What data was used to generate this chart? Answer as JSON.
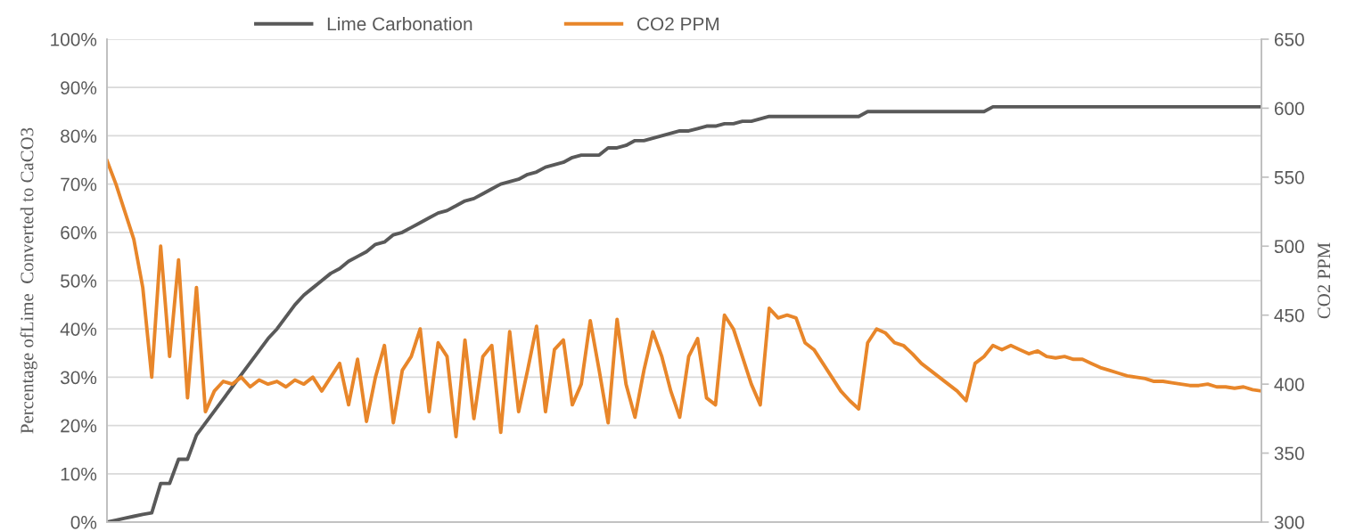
{
  "chart_data": {
    "type": "line",
    "ylabel": "Percentage ofLime  Converted to CaCO3",
    "y2label": "CO2 PPM",
    "categories": [
      null,
      null,
      null,
      null,
      null,
      null,
      null,
      null,
      null,
      null,
      null,
      null,
      null,
      null,
      null,
      null,
      null,
      null,
      null,
      null,
      null,
      null,
      null,
      null,
      null,
      null,
      null,
      null,
      null,
      null,
      null,
      null,
      null,
      null,
      null,
      null,
      null,
      null,
      null,
      null,
      null,
      null,
      null,
      null,
      null,
      null,
      null,
      null,
      null,
      null,
      null,
      null,
      null,
      null,
      null,
      null,
      null,
      null,
      null,
      null,
      null,
      null,
      null,
      null,
      null,
      null,
      null,
      null,
      null,
      null,
      null,
      null,
      null,
      null,
      null,
      null,
      null,
      null,
      null,
      null,
      null,
      null,
      null,
      null,
      null,
      null,
      null,
      null,
      null,
      null,
      null,
      null,
      null,
      null,
      null,
      null,
      null,
      null,
      null,
      null,
      null,
      null,
      null,
      null,
      null,
      null,
      null,
      null,
      null,
      null,
      null,
      null,
      null,
      null,
      null,
      null,
      null,
      null,
      null,
      null,
      null,
      null,
      null,
      null,
      null,
      null,
      null,
      null,
      null,
      null
    ],
    "series": [
      {
        "name": "Lime Carbonation",
        "color": "#595959",
        "values": [
          0,
          0.4,
          0.8,
          1.2,
          1.6,
          1.9,
          8,
          8,
          13,
          13,
          18,
          20.5,
          23,
          25.5,
          28,
          30.5,
          33,
          35.5,
          38,
          40,
          42.5,
          45,
          47,
          48.5,
          50,
          51.5,
          52.5,
          54,
          55,
          56,
          57.5,
          58,
          59.5,
          60,
          61,
          62,
          63,
          64,
          64.5,
          65.5,
          66.5,
          67,
          68,
          69,
          70,
          70.5,
          71,
          72,
          72.5,
          73.5,
          74,
          74.5,
          75.5,
          76,
          76,
          76,
          77.5,
          77.5,
          78,
          79,
          79,
          79.5,
          80,
          80.5,
          81,
          81,
          81.5,
          82,
          82,
          82.5,
          82.5,
          83,
          83,
          83.5,
          84,
          84,
          84,
          84,
          84,
          84,
          84,
          84,
          84,
          84,
          84,
          85,
          85,
          85,
          85,
          85,
          85,
          85,
          85,
          85,
          85,
          85,
          85,
          85,
          85,
          86,
          86,
          86,
          86,
          86,
          86,
          86,
          86,
          86,
          86,
          86,
          86,
          86,
          86,
          86,
          86,
          86,
          86,
          86,
          86,
          86,
          86,
          86,
          86,
          86,
          86,
          86,
          86,
          86,
          86,
          86
        ]
      },
      {
        "name": "CO2 PPM",
        "color": "#e8862a",
        "axis": "y2",
        "values": [
          562,
          545,
          525,
          505,
          470,
          405,
          500,
          420,
          490,
          390,
          470,
          380,
          395,
          402,
          400,
          405,
          398,
          403,
          400,
          402,
          398,
          403,
          400,
          405,
          395,
          405,
          415,
          385,
          418,
          373,
          405,
          428,
          372,
          410,
          420,
          440,
          380,
          430,
          420,
          362,
          432,
          375,
          420,
          428,
          365,
          438,
          380,
          410,
          442,
          380,
          425,
          432,
          385,
          400,
          446,
          410,
          372,
          447,
          400,
          376,
          410,
          438,
          420,
          395,
          376,
          420,
          433,
          390,
          385,
          450,
          440,
          420,
          400,
          385,
          455,
          448,
          450,
          448,
          430,
          425,
          415,
          405,
          395,
          388,
          382,
          430,
          440,
          437,
          430,
          428,
          422,
          415,
          410,
          405,
          400,
          395,
          388,
          415,
          420,
          428,
          425,
          428,
          425,
          422,
          424,
          420,
          419,
          420,
          418,
          418,
          415,
          412,
          410,
          408,
          406,
          405,
          404,
          402,
          402,
          401,
          400,
          399,
          399,
          400,
          398,
          398,
          397,
          398,
          396,
          395
        ]
      }
    ],
    "ylim": [
      0,
      100
    ],
    "yticks": [
      {
        "value": 0,
        "label": "0%"
      },
      {
        "value": 10,
        "label": "10%"
      },
      {
        "value": 20,
        "label": "20%"
      },
      {
        "value": 30,
        "label": "30%"
      },
      {
        "value": 40,
        "label": "40%"
      },
      {
        "value": 50,
        "label": "50%"
      },
      {
        "value": 60,
        "label": "60%"
      },
      {
        "value": 70,
        "label": "70%"
      },
      {
        "value": 80,
        "label": "80%"
      },
      {
        "value": 90,
        "label": "90%"
      },
      {
        "value": 100,
        "label": "100%"
      }
    ],
    "y2lim": [
      300,
      650
    ],
    "y2ticks": [
      300,
      350,
      400,
      450,
      500,
      550,
      600,
      650
    ],
    "grid": "y",
    "legend": "top",
    "marker": "none",
    "line_style": "solid"
  }
}
